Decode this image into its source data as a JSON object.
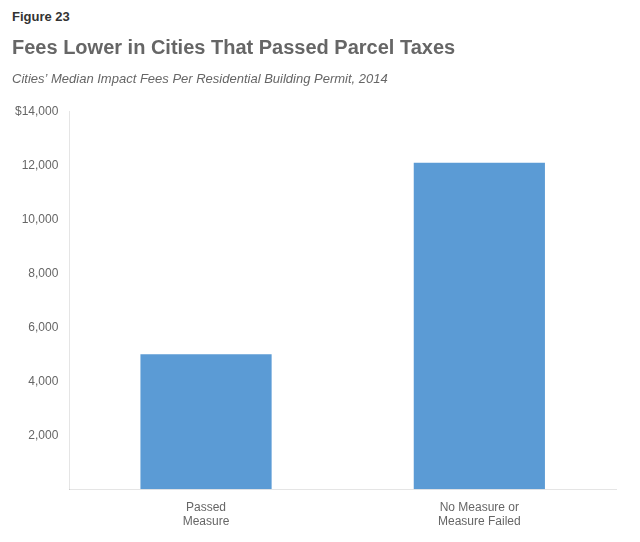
{
  "chart_data": {
    "type": "bar",
    "title": "Fees Lower in Cities That Passed Parcel Taxes",
    "subtitle": "Cities’ Median Impact Fees Per Residential Building Permit, 2014",
    "annotations": [
      "Figure 23"
    ],
    "categories": [
      "Passed\nMeasure",
      "No Measure or\nMeasure Failed"
    ],
    "values": [
      5000,
      12100
    ],
    "color": "#5B9BD5",
    "ylim": [
      0,
      14000
    ],
    "yticks": [
      {
        "value": 2000,
        "label": "2,000"
      },
      {
        "value": 4000,
        "label": "4,000"
      },
      {
        "value": 6000,
        "label": "6,000"
      },
      {
        "value": 8000,
        "label": "8,000"
      },
      {
        "value": 10000,
        "label": "10,000"
      },
      {
        "value": 12000,
        "label": "12,000"
      },
      {
        "value": 14000,
        "label": "$14,000"
      }
    ],
    "grid": false
  }
}
